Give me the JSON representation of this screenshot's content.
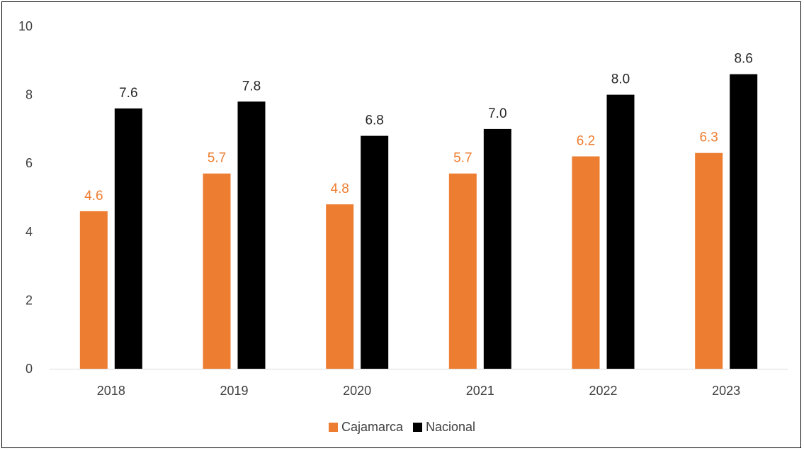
{
  "chart_data": {
    "type": "bar",
    "categories": [
      "2018",
      "2019",
      "2020",
      "2021",
      "2022",
      "2023"
    ],
    "series": [
      {
        "name": "Cajamarca",
        "color": "#ED7D31",
        "values": [
          4.6,
          5.7,
          4.8,
          5.7,
          6.2,
          6.3
        ],
        "labels": [
          "4.6",
          "5.7",
          "4.8",
          "5.7",
          "6.2",
          "6.3"
        ]
      },
      {
        "name": "Nacional",
        "color": "#000000",
        "values": [
          7.6,
          7.8,
          6.8,
          7.0,
          8.0,
          8.6
        ],
        "labels": [
          "7.6",
          "7.8",
          "6.8",
          "7.0",
          "8.0",
          "8.6"
        ]
      }
    ],
    "yticks": [
      "0",
      "2",
      "4",
      "6",
      "8",
      "10"
    ],
    "ylim": [
      0,
      10
    ],
    "grid": false,
    "legend_position": "bottom"
  }
}
